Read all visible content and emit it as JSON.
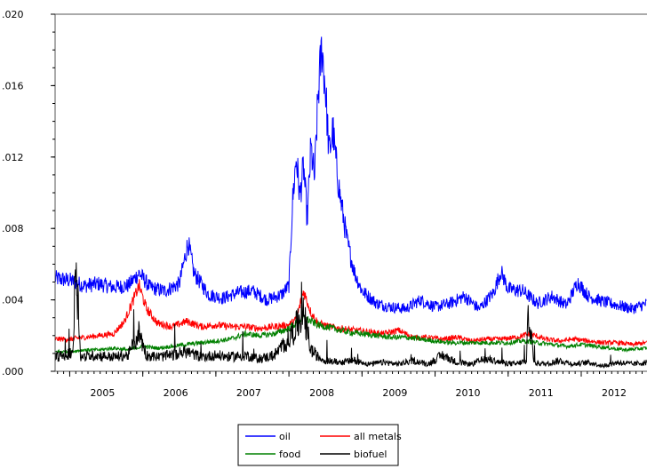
{
  "chart_data": {
    "type": "line",
    "title": "",
    "xlabel": "",
    "ylabel": "",
    "ylim": [
      0.0,
      0.02
    ],
    "xlim": [
      2004.8,
      2012.9
    ],
    "y_ticks": [
      ".000",
      ".004",
      ".008",
      ".012",
      ".016",
      ".020"
    ],
    "y_tick_values": [
      0.0,
      0.004,
      0.008,
      0.012,
      0.016,
      0.02
    ],
    "x_ticks": [
      "2005",
      "2006",
      "2007",
      "2008",
      "2009",
      "2010",
      "2011",
      "2012"
    ],
    "x_tick_values": [
      2005,
      2006,
      2007,
      2008,
      2009,
      2010,
      2011,
      2012
    ],
    "grid": false,
    "legend_position": "bottom-center",
    "series": [
      {
        "name": "oil",
        "color": "#0000ff",
        "x": [
          2004.8,
          2005.0,
          2005.2,
          2005.4,
          2005.6,
          2005.8,
          2005.95,
          2006.1,
          2006.3,
          2006.5,
          2006.62,
          2006.7,
          2006.9,
          2007.1,
          2007.3,
          2007.5,
          2007.7,
          2007.9,
          2008.0,
          2008.05,
          2008.1,
          2008.15,
          2008.2,
          2008.25,
          2008.3,
          2008.35,
          2008.4,
          2008.45,
          2008.5,
          2008.55,
          2008.6,
          2008.65,
          2008.7,
          2008.75,
          2008.8,
          2008.9,
          2009.0,
          2009.2,
          2009.4,
          2009.6,
          2009.8,
          2010.0,
          2010.2,
          2010.4,
          2010.6,
          2010.8,
          2010.9,
          2011.0,
          2011.2,
          2011.4,
          2011.6,
          2011.8,
          2011.95,
          2012.1,
          2012.3,
          2012.5,
          2012.7,
          2012.9
        ],
        "y": [
          0.0052,
          0.0051,
          0.0048,
          0.0049,
          0.0047,
          0.0048,
          0.0055,
          0.0047,
          0.0045,
          0.0049,
          0.0072,
          0.0055,
          0.0043,
          0.0041,
          0.0044,
          0.0045,
          0.004,
          0.0043,
          0.0048,
          0.0095,
          0.012,
          0.0098,
          0.0115,
          0.0085,
          0.0125,
          0.0108,
          0.0155,
          0.0182,
          0.0158,
          0.0122,
          0.0135,
          0.0115,
          0.0098,
          0.0085,
          0.0072,
          0.0055,
          0.0045,
          0.0038,
          0.0036,
          0.0035,
          0.004,
          0.0036,
          0.0038,
          0.0042,
          0.0035,
          0.0044,
          0.0056,
          0.0046,
          0.0045,
          0.0038,
          0.0042,
          0.0037,
          0.005,
          0.0042,
          0.0039,
          0.0037,
          0.0035,
          0.0038
        ]
      },
      {
        "name": "all metals",
        "color": "#ff0000",
        "x": [
          2004.8,
          2005.0,
          2005.2,
          2005.4,
          2005.6,
          2005.75,
          2005.85,
          2005.95,
          2006.05,
          2006.2,
          2006.4,
          2006.6,
          2006.8,
          2007.0,
          2007.2,
          2007.4,
          2007.6,
          2007.8,
          2008.0,
          2008.1,
          2008.2,
          2008.3,
          2008.4,
          2008.55,
          2008.7,
          2008.9,
          2009.1,
          2009.3,
          2009.5,
          2009.7,
          2009.9,
          2010.1,
          2010.3,
          2010.5,
          2010.7,
          2010.9,
          2011.1,
          2011.3,
          2011.5,
          2011.7,
          2011.9,
          2012.1,
          2012.3,
          2012.5,
          2012.7,
          2012.9
        ],
        "y": [
          0.0018,
          0.0018,
          0.0019,
          0.002,
          0.0021,
          0.0028,
          0.0038,
          0.0048,
          0.0035,
          0.0027,
          0.0025,
          0.0028,
          0.0025,
          0.0026,
          0.0025,
          0.0025,
          0.0024,
          0.0025,
          0.0026,
          0.0029,
          0.0045,
          0.0033,
          0.0027,
          0.0025,
          0.0024,
          0.0023,
          0.0022,
          0.0021,
          0.0023,
          0.0019,
          0.0019,
          0.0018,
          0.0019,
          0.0017,
          0.0018,
          0.0018,
          0.0019,
          0.0021,
          0.0018,
          0.0017,
          0.0018,
          0.0017,
          0.0016,
          0.0016,
          0.0015,
          0.0016
        ]
      },
      {
        "name": "food",
        "color": "#008000",
        "x": [
          2004.8,
          2005.0,
          2005.2,
          2005.4,
          2005.6,
          2005.8,
          2006.0,
          2006.2,
          2006.4,
          2006.6,
          2006.8,
          2007.0,
          2007.2,
          2007.4,
          2007.6,
          2007.8,
          2008.0,
          2008.1,
          2008.2,
          2008.3,
          2008.4,
          2008.5,
          2008.6,
          2008.8,
          2009.0,
          2009.2,
          2009.4,
          2009.6,
          2009.8,
          2010.0,
          2010.2,
          2010.4,
          2010.6,
          2010.8,
          2011.0,
          2011.2,
          2011.4,
          2011.6,
          2011.8,
          2012.0,
          2012.2,
          2012.4,
          2012.6,
          2012.9
        ],
        "y": [
          0.0011,
          0.0011,
          0.0012,
          0.0012,
          0.0013,
          0.0012,
          0.0014,
          0.0013,
          0.0014,
          0.0015,
          0.0016,
          0.0017,
          0.0018,
          0.0021,
          0.002,
          0.0021,
          0.0024,
          0.0027,
          0.003,
          0.0028,
          0.0026,
          0.0025,
          0.0024,
          0.0022,
          0.0021,
          0.002,
          0.0019,
          0.0019,
          0.0018,
          0.0017,
          0.0016,
          0.0016,
          0.0016,
          0.0016,
          0.0016,
          0.0017,
          0.0016,
          0.0015,
          0.0014,
          0.0015,
          0.0014,
          0.0013,
          0.0012,
          0.0013
        ]
      },
      {
        "name": "biofuel",
        "color": "#000000",
        "x": [
          2004.8,
          2004.95,
          2005.05,
          2005.08,
          2005.15,
          2005.35,
          2005.6,
          2005.8,
          2005.95,
          2006.05,
          2006.2,
          2006.4,
          2006.6,
          2006.8,
          2007.0,
          2007.2,
          2007.4,
          2007.6,
          2007.8,
          2008.0,
          2008.1,
          2008.2,
          2008.3,
          2008.4,
          2008.5,
          2008.7,
          2008.9,
          2009.1,
          2009.3,
          2009.5,
          2009.7,
          2009.9,
          2010.1,
          2010.3,
          2010.5,
          2010.7,
          2010.9,
          2011.1,
          2011.25,
          2011.28,
          2011.35,
          2011.5,
          2011.7,
          2011.9,
          2012.1,
          2012.3,
          2012.5,
          2012.7,
          2012.9
        ],
        "y": [
          0.0008,
          0.0009,
          0.0012,
          0.0067,
          0.0008,
          0.0009,
          0.0008,
          0.0009,
          0.0022,
          0.0009,
          0.0008,
          0.0009,
          0.0011,
          0.0008,
          0.0009,
          0.0008,
          0.0009,
          0.0007,
          0.0009,
          0.0018,
          0.0025,
          0.0032,
          0.0012,
          0.0008,
          0.0006,
          0.0005,
          0.0006,
          0.0004,
          0.0005,
          0.0004,
          0.0006,
          0.0004,
          0.0009,
          0.0005,
          0.0004,
          0.0007,
          0.0005,
          0.0004,
          0.0006,
          0.0035,
          0.0005,
          0.0004,
          0.0006,
          0.0004,
          0.0005,
          0.0003,
          0.0005,
          0.0004,
          0.0005
        ]
      }
    ]
  }
}
